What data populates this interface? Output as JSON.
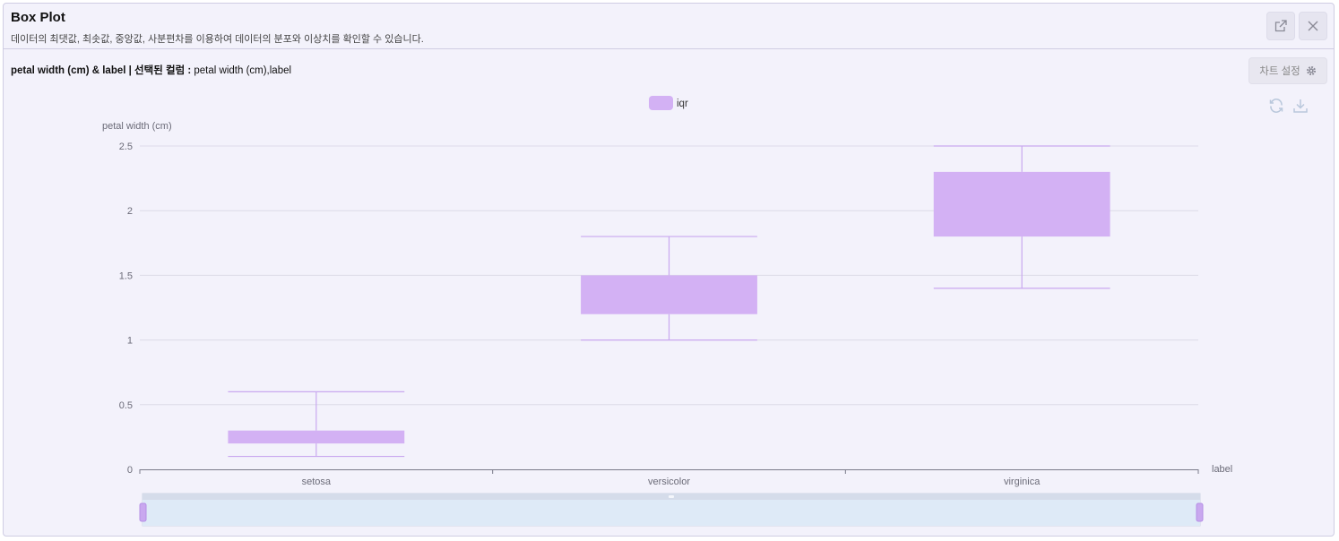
{
  "header": {
    "title": "Box Plot",
    "subtitle": "데이터의 최댓값, 최솟값, 중앙값, 사분편차를 이용하여 데이터의 분포와 이상치를 확인할 수 있습니다."
  },
  "info": {
    "heading": "petal width (cm) & label",
    "selected_label": "| 선택된 컬럼 :",
    "selected_columns": "petal width (cm),label"
  },
  "toolbar": {
    "settings_label": "차트 설정",
    "icons": [
      "external-link-icon",
      "close-icon",
      "gear-icon",
      "refresh-icon",
      "download-icon"
    ]
  },
  "colors": {
    "box": "#d3b1f4",
    "whisker": "#c9a8ef",
    "grid": "#dcdbe8",
    "axis": "#7a7a88",
    "zoom_bg": "#deeaf7"
  },
  "chart_data": {
    "type": "boxplot",
    "ylabel": "petal width (cm)",
    "xlabel": "label",
    "ylim": [
      0,
      2.5
    ],
    "yticks": [
      0,
      0.5,
      1,
      1.5,
      2,
      2.5
    ],
    "ytick_labels": [
      "0",
      "0.5",
      "1",
      "1.5",
      "2",
      "2.5"
    ],
    "categories": [
      "setosa",
      "versicolor",
      "virginica"
    ],
    "legend": [
      "iqr"
    ],
    "legend_position": "top-center",
    "grid": true,
    "series": [
      {
        "name": "iqr",
        "boxes": [
          {
            "category": "setosa",
            "min": 0.1,
            "q1": 0.2,
            "q3": 0.3,
            "max": 0.6
          },
          {
            "category": "versicolor",
            "min": 1.0,
            "q1": 1.2,
            "q3": 1.5,
            "max": 1.8
          },
          {
            "category": "virginica",
            "min": 1.4,
            "q1": 1.8,
            "q3": 2.3,
            "max": 2.5
          }
        ]
      }
    ],
    "zoom_range": [
      0,
      100
    ]
  }
}
